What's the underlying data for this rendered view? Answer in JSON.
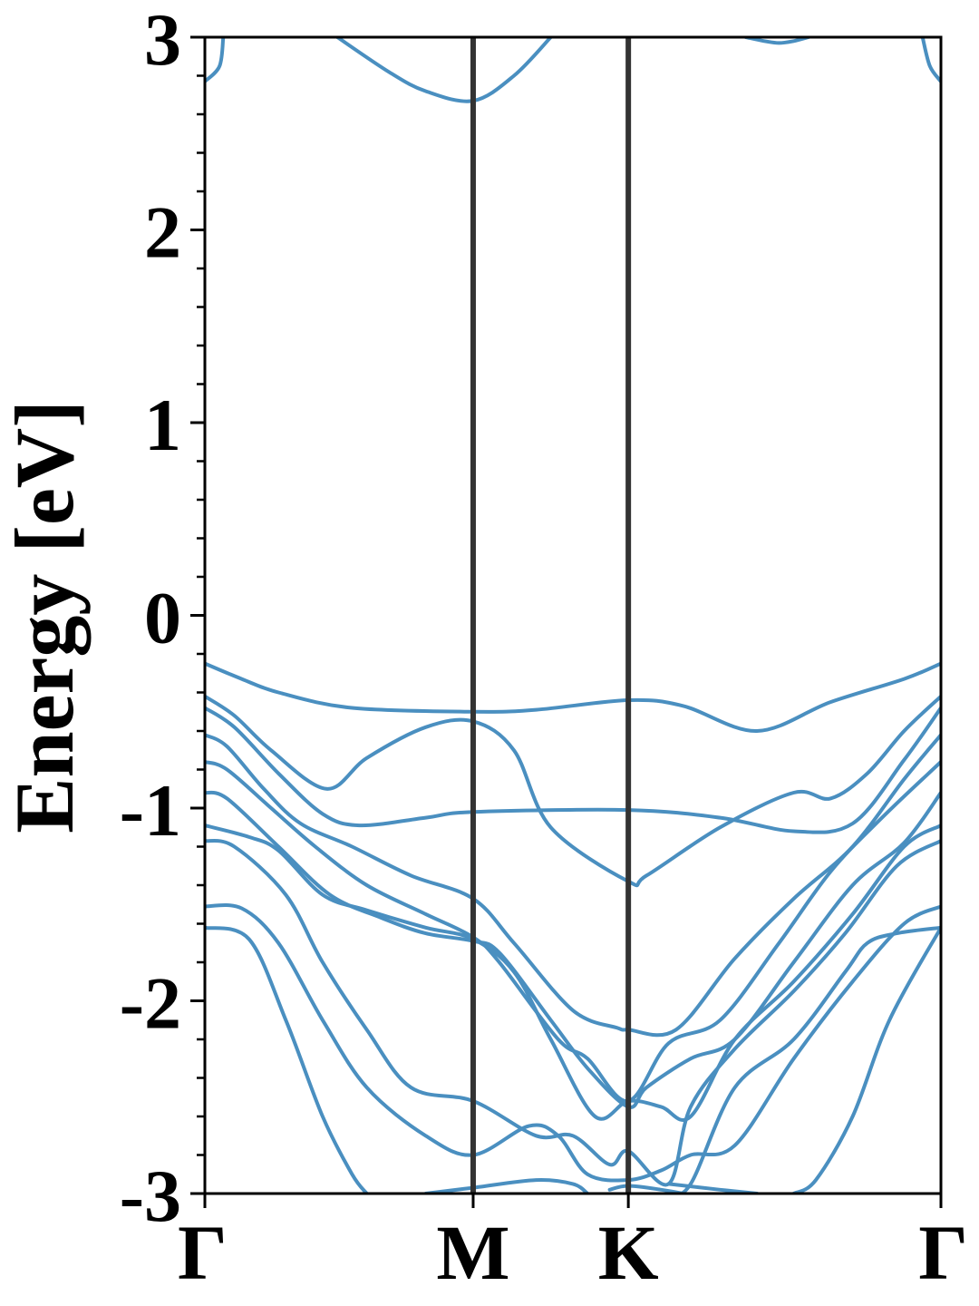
{
  "chart_data": {
    "type": "line",
    "title": "",
    "xlabel": "",
    "ylabel": "Energy [eV]",
    "ylim": [
      -3,
      3
    ],
    "y_major_ticks": [
      -3,
      -2,
      -1,
      0,
      1,
      2,
      3
    ],
    "y_tick_labels": [
      "-3",
      "-2",
      "-1",
      "0",
      "1",
      "2",
      "3"
    ],
    "y_minor_step": 0.2,
    "xlim": [
      0,
      1
    ],
    "high_symmetry_points": [
      {
        "label": "Γ",
        "x": 0
      },
      {
        "label": "M",
        "x": 0.3645
      },
      {
        "label": "K",
        "x": 0.5753
      },
      {
        "label": "Γ",
        "x": 1
      }
    ],
    "line_color": "#4a8fc0",
    "vline_color": "#333333",
    "bands": [
      {
        "x": [
          0,
          0.05,
          0.1,
          0.2,
          0.3645,
          0.45,
          0.5753,
          0.65,
          0.75,
          0.85,
          0.95,
          1
        ],
        "y": [
          -0.25,
          -0.33,
          -0.4,
          -0.48,
          -0.5,
          -0.49,
          -0.44,
          -0.47,
          -0.6,
          -0.45,
          -0.33,
          -0.25
        ]
      },
      {
        "x": [
          0,
          0.04,
          0.09,
          0.165,
          0.22,
          0.3,
          0.3645,
          0.42,
          0.47,
          0.5753,
          0.6,
          0.7,
          0.8,
          0.85,
          0.9,
          0.95,
          1
        ],
        "y": [
          -0.42,
          -0.52,
          -0.7,
          -0.9,
          -0.74,
          -0.58,
          -0.55,
          -0.7,
          -1.1,
          -1.38,
          -1.35,
          -1.1,
          -0.92,
          -0.95,
          -0.82,
          -0.6,
          -0.42
        ]
      },
      {
        "x": [
          0,
          0.04,
          0.1,
          0.16,
          0.21,
          0.3,
          0.3645,
          0.5753,
          0.7,
          0.8,
          0.88,
          0.95,
          1
        ],
        "y": [
          -0.48,
          -0.58,
          -0.82,
          -1.03,
          -1.09,
          -1.05,
          -1.02,
          -1.01,
          -1.05,
          -1.12,
          -1.08,
          -0.75,
          -0.48
        ]
      },
      {
        "x": [
          0,
          0.03,
          0.08,
          0.13,
          0.2,
          0.28,
          0.3645,
          0.42,
          0.5,
          0.56,
          0.5753,
          0.64,
          0.72,
          0.8,
          0.88,
          0.95,
          1
        ],
        "y": [
          -0.62,
          -0.68,
          -0.9,
          -1.08,
          -1.2,
          -1.35,
          -1.47,
          -1.7,
          -2.05,
          -2.14,
          -2.15,
          -2.15,
          -1.78,
          -1.47,
          -1.2,
          -0.85,
          -0.62
        ]
      },
      {
        "x": [
          0,
          0.03,
          0.09,
          0.15,
          0.22,
          0.3,
          0.3645,
          0.4,
          0.48,
          0.52,
          0.5753,
          0.63,
          0.7,
          0.78,
          0.85,
          0.92,
          1
        ],
        "y": [
          -0.76,
          -0.8,
          -1.0,
          -1.2,
          -1.4,
          -1.55,
          -1.67,
          -1.8,
          -2.2,
          -2.3,
          -2.52,
          -2.22,
          -2.1,
          -1.7,
          -1.33,
          -1.05,
          -0.76
        ]
      },
      {
        "x": [
          0,
          0.03,
          0.1,
          0.17,
          0.24,
          0.3,
          0.3645,
          0.4,
          0.47,
          0.52,
          0.5753,
          0.6,
          0.66,
          0.72,
          0.8,
          0.88,
          0.95,
          1
        ],
        "y": [
          -0.92,
          -0.95,
          -1.2,
          -1.45,
          -1.57,
          -1.65,
          -1.69,
          -1.75,
          -2.1,
          -2.35,
          -2.55,
          -2.45,
          -2.3,
          -2.2,
          -1.8,
          -1.4,
          -1.18,
          -0.92
        ]
      },
      {
        "x": [
          0,
          0.06,
          0.1,
          0.16,
          0.22,
          0.3,
          0.3645,
          0.42,
          0.47,
          0.53,
          0.5753,
          0.62,
          0.66,
          0.72,
          0.8,
          0.88,
          0.95,
          1
        ],
        "y": [
          -1.09,
          -1.15,
          -1.22,
          -1.45,
          -1.53,
          -1.62,
          -1.68,
          -1.85,
          -2.2,
          -2.6,
          -2.52,
          -2.55,
          -2.6,
          -2.2,
          -1.9,
          -1.55,
          -1.2,
          -1.09
        ]
      },
      {
        "x": [
          0,
          0.04,
          0.11,
          0.16,
          0.22,
          0.28,
          0.3645,
          0.45,
          0.5,
          0.55,
          0.5753,
          0.63,
          0.66,
          0.72,
          0.8,
          0.87,
          0.94,
          1
        ],
        "y": [
          -1.17,
          -1.2,
          -1.45,
          -1.8,
          -2.15,
          -2.45,
          -2.52,
          -2.7,
          -2.7,
          -2.85,
          -2.78,
          -2.95,
          -2.55,
          -2.25,
          -1.95,
          -1.65,
          -1.3,
          -1.17
        ]
      },
      {
        "x": [
          0,
          0.05,
          0.1,
          0.16,
          0.22,
          0.3,
          0.3645,
          0.44,
          0.48,
          0.52,
          0.5753,
          0.62,
          0.66,
          0.72,
          0.8,
          0.88,
          0.95,
          1
        ],
        "y": [
          -1.51,
          -1.52,
          -1.7,
          -2.1,
          -2.45,
          -2.7,
          -2.8,
          -2.65,
          -2.7,
          -2.9,
          -2.93,
          -2.88,
          -2.8,
          -2.75,
          -2.3,
          -1.9,
          -1.6,
          -1.51
        ]
      },
      {
        "x": [
          0,
          0.06,
          0.11,
          0.16,
          0.2,
          0.22
        ],
        "y": [
          -1.62,
          -1.68,
          -2.1,
          -2.6,
          -2.9,
          -3.0
        ]
      },
      {
        "x": [
          0.3,
          0.3645,
          0.45,
          0.5,
          0.52
        ],
        "y": [
          -3.0,
          -2.97,
          -2.93,
          -2.95,
          -3.0
        ]
      },
      {
        "x": [
          0.55,
          0.5753,
          0.62,
          0.65
        ],
        "y": [
          -2.98,
          -2.96,
          -2.98,
          -3.0
        ]
      },
      {
        "x": [
          0.63,
          0.66,
          0.72,
          0.8,
          0.87,
          0.9,
          0.94,
          1
        ],
        "y": [
          -3.0,
          -2.95,
          -2.45,
          -2.2,
          -1.85,
          -1.7,
          -1.65,
          -1.62
        ]
      },
      {
        "x": [
          0.63,
          0.7,
          0.75
        ],
        "y": [
          -2.95,
          -2.98,
          -3.0
        ]
      },
      {
        "x": [
          0.8,
          0.83,
          0.88,
          0.93,
          1
        ],
        "y": [
          -3.0,
          -2.93,
          -2.6,
          -2.1,
          -1.62
        ]
      },
      {
        "x": [
          0,
          0.02,
          0.025
        ],
        "y": [
          2.77,
          2.85,
          3.0
        ]
      },
      {
        "x": [
          0.18,
          0.25,
          0.3,
          0.3645,
          0.42,
          0.47
        ],
        "y": [
          3.0,
          2.82,
          2.72,
          2.67,
          2.8,
          3.0
        ]
      },
      {
        "x": [
          0.735,
          0.76,
          0.78,
          0.8,
          0.82
        ],
        "y": [
          3.0,
          2.98,
          2.97,
          2.98,
          3.0
        ]
      },
      {
        "x": [
          0.975,
          0.985,
          1
        ],
        "y": [
          3.0,
          2.85,
          2.77
        ]
      }
    ]
  }
}
